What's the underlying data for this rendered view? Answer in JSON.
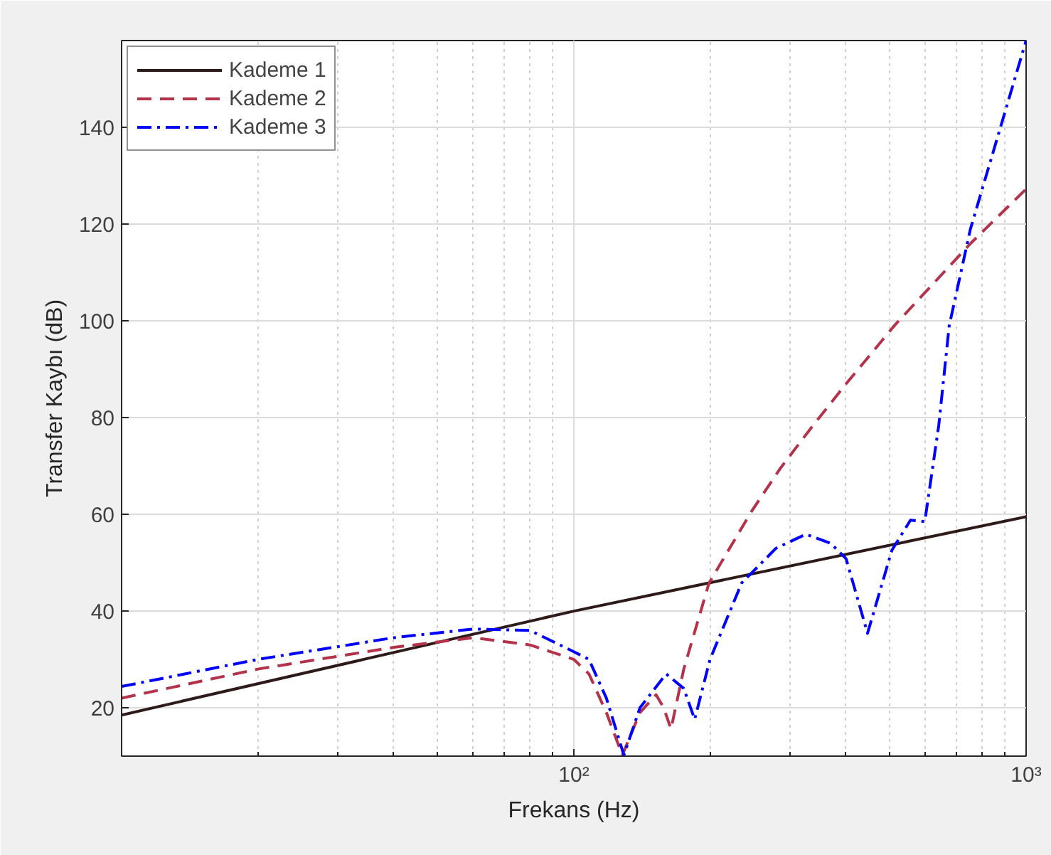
{
  "chart_data": {
    "type": "line",
    "xlabel": "Frekans (Hz)",
    "ylabel": "Transfer Kaybı (dB)",
    "log": "x",
    "xlim": [
      10,
      1000
    ],
    "ylim": [
      10,
      158
    ],
    "xticks": [
      {
        "value": 100,
        "label": "10²"
      },
      {
        "value": 1000,
        "label": "10³"
      }
    ],
    "yticks": [
      20,
      40,
      60,
      80,
      100,
      120,
      140
    ],
    "grid": true,
    "legend": "top left",
    "series": [
      {
        "name": "Kademe 1",
        "color": "#2f1a1a",
        "line_style": "solid",
        "x": [
          10,
          100,
          1000
        ],
        "values": [
          18.5,
          40,
          59.5
        ]
      },
      {
        "name": "Kademe 2",
        "color": "#b5334a",
        "line_style": "dashed",
        "x": [
          10,
          20,
          40,
          60,
          80,
          100,
          108,
          118,
          128,
          140,
          152,
          158,
          164,
          175,
          199,
          247,
          286,
          338,
          400,
          512,
          753,
          1000
        ],
        "values": [
          22,
          28,
          32.5,
          34.5,
          33,
          30,
          27,
          19,
          10.2,
          19,
          22.7,
          20,
          15.6,
          28,
          45.8,
          60.6,
          69.5,
          78.4,
          87,
          99.1,
          116,
          127.3
        ]
      },
      {
        "name": "Kademe 3",
        "color": "#0000ff",
        "line_style": "dashdot",
        "x": [
          10,
          20,
          40,
          60,
          80,
          100,
          108,
          118,
          129,
          140,
          160,
          175,
          185,
          200,
          235,
          280,
          326,
          370,
          400,
          446,
          505,
          555,
          597,
          641,
          676,
          753,
          1000
        ],
        "values": [
          24.4,
          30,
          34.5,
          36.3,
          36,
          31.6,
          30,
          22,
          10.2,
          20,
          27,
          24,
          17.6,
          30,
          45.8,
          53,
          55.9,
          54,
          50.8,
          35.4,
          52.6,
          58.8,
          58.5,
          78.4,
          99,
          119,
          158
        ]
      }
    ]
  }
}
